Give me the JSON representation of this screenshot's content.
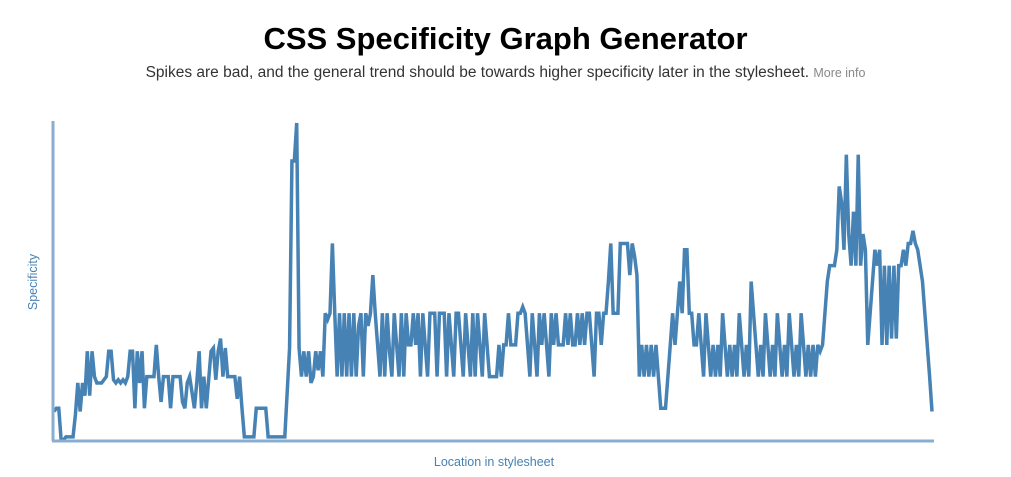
{
  "header": {
    "title": "CSS Specificity Graph Generator",
    "subtitle": "Spikes are bad, and the general trend should be towards higher specificity later in the stylesheet.",
    "more_info": "More info"
  },
  "colors": {
    "line": "#4682b4",
    "axis": "#8aaed0",
    "title": "#000000",
    "subtitle": "#333333",
    "link": "#888888"
  },
  "chart_data": {
    "type": "line",
    "title": "",
    "xlabel": "Location in stylesheet",
    "ylabel": "Specificity",
    "grid": false,
    "ticks": false,
    "ylim": [
      0,
      100
    ],
    "series": [
      {
        "values": [
          9,
          10,
          10,
          0,
          0,
          1,
          1,
          1,
          1,
          8,
          18,
          9,
          18,
          14,
          28,
          14,
          28,
          20,
          18,
          18,
          18,
          19,
          20,
          28,
          28,
          19,
          18,
          19,
          18,
          19,
          18,
          20,
          28,
          28,
          10,
          28,
          18,
          28,
          10,
          20,
          20,
          20,
          20,
          30,
          20,
          12,
          20,
          20,
          20,
          10,
          20,
          20,
          20,
          20,
          12,
          10,
          18,
          20,
          15,
          10,
          18,
          28,
          10,
          20,
          10,
          19,
          28,
          29,
          19,
          28,
          32,
          20,
          29,
          20,
          20,
          20,
          20,
          13,
          20,
          10,
          1,
          1,
          1,
          1,
          1,
          10,
          10,
          10,
          10,
          10,
          1,
          1,
          1,
          1,
          1,
          1,
          1,
          1,
          15,
          29,
          88,
          88,
          100,
          29,
          20,
          28,
          20,
          28,
          18,
          20,
          28,
          22,
          28,
          20,
          40,
          38,
          40,
          62,
          40,
          20,
          40,
          20,
          40,
          20,
          40,
          20,
          40,
          20,
          36,
          40,
          20,
          40,
          36,
          40,
          52,
          40,
          30,
          20,
          40,
          20,
          40,
          28,
          20,
          40,
          30,
          20,
          40,
          20,
          40,
          30,
          30,
          40,
          30,
          40,
          20,
          40,
          30,
          20,
          40,
          40,
          40,
          20,
          40,
          40,
          40,
          20,
          40,
          30,
          20,
          40,
          40,
          30,
          20,
          40,
          30,
          20,
          40,
          20,
          40,
          30,
          20,
          40,
          30,
          20,
          20,
          20,
          20,
          30,
          20,
          30,
          30,
          40,
          30,
          30,
          30,
          40,
          40,
          42,
          40,
          30,
          20,
          40,
          30,
          20,
          40,
          30,
          40,
          30,
          20,
          40,
          30,
          40,
          30,
          30,
          30,
          40,
          30,
          40,
          30,
          30,
          40,
          30,
          40,
          30,
          40,
          40,
          30,
          20,
          40,
          40,
          30,
          40,
          40,
          50,
          62,
          40,
          40,
          40,
          62,
          62,
          62,
          62,
          52,
          62,
          58,
          52,
          20,
          30,
          20,
          30,
          20,
          30,
          20,
          30,
          20,
          10,
          10,
          10,
          20,
          30,
          40,
          30,
          40,
          50,
          40,
          60,
          60,
          40,
          40,
          30,
          30,
          40,
          30,
          20,
          40,
          30,
          20,
          30,
          20,
          30,
          20,
          40,
          30,
          20,
          30,
          20,
          30,
          20,
          40,
          30,
          20,
          30,
          20,
          50,
          40,
          30,
          20,
          30,
          20,
          40,
          30,
          20,
          30,
          20,
          40,
          30,
          20,
          30,
          20,
          40,
          30,
          20,
          30,
          20,
          40,
          30,
          20,
          30,
          20,
          30,
          20,
          30,
          28,
          30,
          40,
          50,
          55,
          55,
          55,
          60,
          80,
          75,
          60,
          90,
          65,
          55,
          72,
          55,
          90,
          55,
          65,
          60,
          30,
          40,
          50,
          60,
          55,
          60,
          30,
          55,
          30,
          55,
          32,
          55,
          32,
          55,
          55,
          60,
          55,
          62,
          62,
          66,
          62,
          60,
          55,
          50,
          40,
          30,
          20,
          9
        ]
      }
    ]
  }
}
